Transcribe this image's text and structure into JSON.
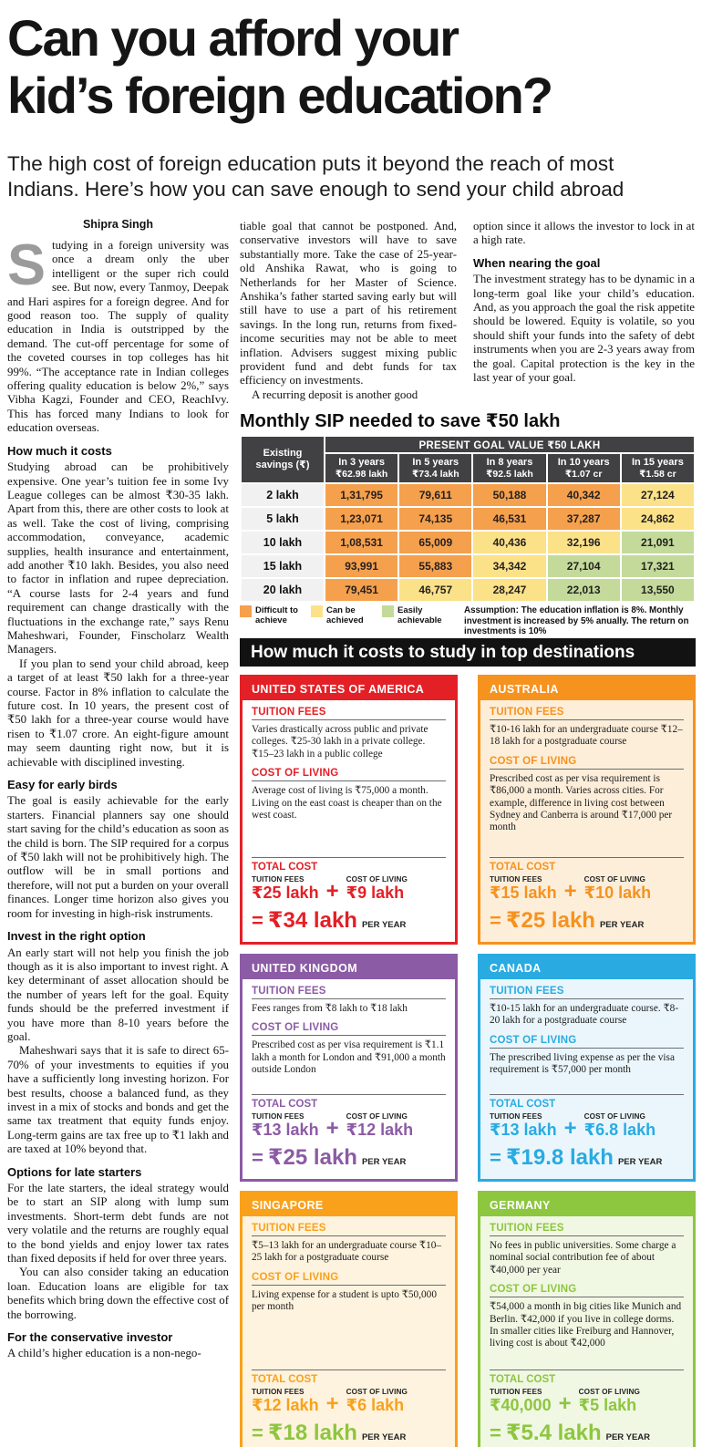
{
  "headline": {
    "line1": "Can you afford your",
    "line2": "kid’s foreign education?"
  },
  "subhead": "The high cost of foreign education puts it beyond the reach of most Indians. Here’s how you can save enough to send your child abroad",
  "byline": "Shipra Singh",
  "left": {
    "dropcap": "S",
    "intro": "tudying in a foreign university was once a dream only the uber intelligent or the super rich could see. But now, every Tanmoy, Deepak and Hari aspires for a foreign degree. And for good reason too. The supply of quality education in India is outstripped by the demand. The cut-off percentage for some of the coveted courses in top colleges has hit 99%. “The acceptance rate in Indian colleges offering quality education is below 2%,” says Vibha Kagzi, Founder and CEO, ReachIvy. This has  forced many Indians to look for education overseas.",
    "h_costs": "How much it costs",
    "p_costs1": "Studying abroad can be prohibitively expensive. One year’s tuition fee in some Ivy League colleges can be almost ₹30-35 lakh. Apart from this, there are other costs to look at as well. Take the cost of living, comprising accommodation, conveyance, academic supplies, health insurance and entertainment, add another ₹10 lakh. Besides, you also need to factor in inflation and rupee depreciation. “A course lasts for 2-4 years and fund requirement can change drastically with the fluctuations in the exchange rate,” says Renu Maheshwari, Founder, Finscholarz Wealth Managers.",
    "p_costs2": "If you plan to send your child abroad, keep a target of at least ₹50 lakh for a three-year course. Factor in 8% inflation to calculate the future cost. In 10 years, the present cost of ₹50 lakh for a three-year course would have risen to ₹1.07 crore. An eight-figure amount may seem daunting right now, but it is achievable with disciplined investing.",
    "h_early": "Easy for early birds",
    "p_early": "The goal is easily achievable for the early starters. Financial planners say one should start saving for the child’s education as soon as the child is born. The SIP required for a corpus of ₹50 lakh will not be prohibitively high. The outflow will be in small portions and therefore, will not put a burden on your overall finances. Longer time horizon also gives you room for investing in high-risk instruments.",
    "h_invest": "Invest in the right option",
    "p_invest1": "An early start will not help you finish the job though as it is also important to invest right. A key determinant of asset allocation should be the number of years left for the goal. Equity funds should be the preferred investment if you have more than 8-10 years before the goal.",
    "p_invest2": "Maheshwari says that it is safe to direct 65-70% of your investments to equities if you have a sufficiently long investing horizon. For best results, choose a balanced fund, as they invest in a mix of stocks and bonds and get the same tax treatment that equity funds enjoy. Long-term gains are tax free up to ₹1 lakh and are taxed at 10% beyond that.",
    "h_late": "Options for late starters",
    "p_late1": "For the late starters, the ideal strategy would be to start an SIP along with lump sum investments. Short-term debt funds are not very volatile and the returns are roughly equal to the bond yields and enjoy lower tax rates than fixed deposits if held for over three years.",
    "p_late2": "You can also consider taking an education loan. Education loans are eligible for tax benefits which bring down the effective cost of the borrowing.",
    "h_cons": "For the conservative investor",
    "p_cons": "A child’s higher education is a non-nego-"
  },
  "mid": {
    "p1": "tiable goal that cannot be postponed. And, conservative investors will have to save substantially more. Take the case of 25-year-old Anshika Rawat, who is going to Netherlands for her Master of Science. Anshika’s father started saving early but will still have to use a part of his retirement savings. In the long run, returns from fixed-income securities may not be able to meet inflation. Advisers suggest mixing public provident fund and debt funds for tax efficiency on investments.",
    "p2": "A recurring deposit is another good"
  },
  "right": {
    "p1": "option since it allows the investor to lock in at a high rate.",
    "h1": "When nearing the goal",
    "p2": "The investment strategy has to be dynamic in a long-term goal like your child’s education. And, as you approach the goal the risk appetite should be lowered. Equity is volatile, so you should shift your funds into the safety of debt instruments when you are 2-3 years away from the goal. Capital protection is the key in the last year of  your goal."
  },
  "sip": {
    "title": "Monthly SIP needed to save ₹50 lakh",
    "savings_header": "Existing savings (₹)",
    "goal_header": "PRESENT GOAL VALUE ₹50 LAKH",
    "cols": [
      {
        "years": "In 3 years",
        "value": "₹62.98 lakh"
      },
      {
        "years": "In 5 years",
        "value": "₹73.4 lakh"
      },
      {
        "years": "In 8 years",
        "value": "₹92.5 lakh"
      },
      {
        "years": "In 10 years",
        "value": "₹1.07 cr"
      },
      {
        "years": "In 15 years",
        "value": "₹1.58 cr"
      }
    ],
    "rows": [
      {
        "label": "2 lakh",
        "cells": [
          "1,31,795",
          "79,611",
          "50,188",
          "40,342",
          "27,124"
        ],
        "levels": [
          "d",
          "d",
          "d",
          "d",
          "c"
        ]
      },
      {
        "label": "5 lakh",
        "cells": [
          "1,23,071",
          "74,135",
          "46,531",
          "37,287",
          "24,862"
        ],
        "levels": [
          "d",
          "d",
          "d",
          "d",
          "c"
        ]
      },
      {
        "label": "10 lakh",
        "cells": [
          "1,08,531",
          "65,009",
          "40,436",
          "32,196",
          "21,091"
        ],
        "levels": [
          "d",
          "d",
          "c",
          "c",
          "e"
        ]
      },
      {
        "label": "15 lakh",
        "cells": [
          "93,991",
          "55,883",
          "34,342",
          "27,104",
          "17,321"
        ],
        "levels": [
          "d",
          "d",
          "c",
          "e",
          "e"
        ]
      },
      {
        "label": "20 lakh",
        "cells": [
          "79,451",
          "46,757",
          "28,247",
          "22,013",
          "13,550"
        ],
        "levels": [
          "d",
          "c",
          "c",
          "e",
          "e"
        ]
      }
    ],
    "legend": [
      {
        "level": "d",
        "label": "Difficult to achieve"
      },
      {
        "level": "c",
        "label": "Can be achieved"
      },
      {
        "level": "e",
        "label": "Easily achievable"
      }
    ],
    "assumption": "Assumption: The education inflation is 8%. Monthly investment is increased by 5% anually. The return on investments is 10%",
    "level_colors": {
      "d": "#F5A04C",
      "c": "#FBE289",
      "e": "#C3DA9B"
    }
  },
  "banner": "How much it costs to study in top destinations",
  "cards": [
    {
      "theme": "usa",
      "color": "#E32026",
      "title": "UNITED STATES OF AMERICA",
      "tuition_heading": "TUITION FEES",
      "tuition_text": "Varies drastically across public and private colleges. ₹25-30 lakh in a private college. ₹15–23 lakh in a public college",
      "col_heading": "COST OF LIVING",
      "col_text": "Average cost of living is ₹75,000 a month. Living on the east coast is cheaper than on the west coast.",
      "total_heading": "TOTAL COST",
      "tuition_label": "TUITION FEES",
      "tuition_value": "₹25 lakh",
      "plus": "+",
      "col_label": "COST OF LIVING",
      "col_value": "₹9 lakh",
      "equals": "=",
      "total_value": "₹34 lakh",
      "per_year": "PER YEAR"
    },
    {
      "theme": "aus",
      "color": "#F6921E",
      "title": "AUSTRALIA",
      "tuition_heading": "TUITION FEES",
      "tuition_text": "₹10-16 lakh for an undergraduate course ₹12–18 lakh for a postgraduate course",
      "col_heading": "COST OF LIVING",
      "col_text": "Prescribed cost as per visa requirement is ₹86,000 a month. Varies across cities. For example, difference in living cost between Sydney and Canberra is around ₹17,000 per month",
      "total_heading": "TOTAL COST",
      "tuition_label": "TUITION FEES",
      "tuition_value": "₹15 lakh",
      "plus": "+",
      "col_label": "COST OF LIVING",
      "col_value": "₹10 lakh",
      "equals": "=",
      "total_value": "₹25 lakh",
      "per_year": "PER YEAR"
    },
    {
      "theme": "uk",
      "color": "#8C5BA5",
      "title": "UNITED KINGDOM",
      "tuition_heading": "TUITION FEES",
      "tuition_text": "Fees ranges from ₹8 lakh to ₹18 lakh",
      "col_heading": "COST OF LIVING",
      "col_text": "Prescribed cost as per visa requirement is ₹1.1 lakh a month for London and ₹91,000 a month outside London",
      "total_heading": "TOTAL COST",
      "tuition_label": "TUITION FEES",
      "tuition_value": "₹13 lakh",
      "plus": "+",
      "col_label": "COST OF LIVING",
      "col_value": "₹12 lakh",
      "equals": "=",
      "total_value": "₹25 lakh",
      "per_year": "PER YEAR"
    },
    {
      "theme": "can",
      "color": "#29ABE2",
      "title": "CANADA",
      "tuition_heading": "TUITION FEES",
      "tuition_text": "₹10-15 lakh for an undergraduate course. ₹8-20 lakh for a postgraduate course",
      "col_heading": "COST OF LIVING",
      "col_text": "The prescribed living expense as per the visa requirement is ₹57,000 per month",
      "total_heading": "TOTAL COST",
      "tuition_label": "TUITION FEES",
      "tuition_value": "₹13 lakh",
      "plus": "+",
      "col_label": "COST OF LIVING",
      "col_value": "₹6.8 lakh",
      "equals": "=",
      "total_value": "₹19.8 lakh",
      "per_year": "PER YEAR"
    },
    {
      "theme": "sgp",
      "color": "#F9A11B",
      "title": "SINGAPORE",
      "tuition_heading": "TUITION FEES",
      "tuition_text": "₹5–13 lakh for an undergraduate course ₹10–25 lakh for a postgraduate course",
      "col_heading": "COST OF LIVING",
      "col_text": "Living expense for a student is upto ₹50,000 per month",
      "total_heading": "TOTAL COST",
      "tuition_label": "TUITION FEES",
      "tuition_value": "₹12 lakh",
      "plus": "+",
      "col_label": "COST OF LIVING",
      "col_value": "₹6 lakh",
      "equals": "=",
      "total_value": "₹18 lakh",
      "per_year": "PER YEAR"
    },
    {
      "theme": "ger",
      "color": "#8DC63F",
      "title": "GERMANY",
      "tuition_heading": "TUITION FEES",
      "tuition_text": "No fees in public universities. Some charge a nominal social contribution fee of about ₹40,000 per year",
      "col_heading": "COST OF LIVING",
      "col_text": "₹54,000 a month in big cities like Munich and Berlin. ₹42,000 if you live in college dorms. In smaller cities like Freiburg and Hannover, living cost is about ₹42,000",
      "total_heading": "TOTAL COST",
      "tuition_label": "TUITION FEES",
      "tuition_value": "₹40,000",
      "plus": "+",
      "col_label": "COST OF LIVING",
      "col_value": "₹5 lakh",
      "equals": "=",
      "total_value": "₹5.4 lakh",
      "per_year": "PER YEAR"
    }
  ]
}
